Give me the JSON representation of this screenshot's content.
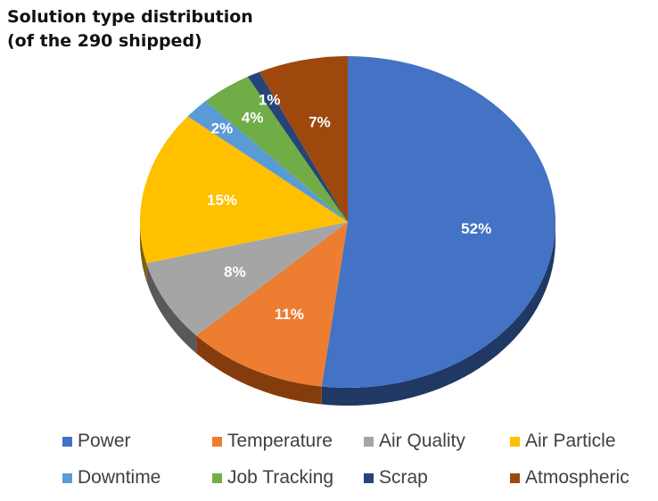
{
  "title_line1": "Solution type distribution",
  "title_line2": "(of the 290 shipped)",
  "chart_data": {
    "type": "pie",
    "title": "Solution type distribution (of the 290 shipped)",
    "slices": [
      {
        "name": "Power",
        "value": 52,
        "label": "52%",
        "color": "#4472C4",
        "side": "#1F3864"
      },
      {
        "name": "Temperature",
        "value": 11,
        "label": "11%",
        "color": "#ED7D31",
        "side": "#843C0C"
      },
      {
        "name": "Air Quality",
        "value": 8,
        "label": "8%",
        "color": "#A5A5A5",
        "side": "#595959"
      },
      {
        "name": "Air Particle",
        "value": 15,
        "label": "15%",
        "color": "#FFC000",
        "side": "#7F6000"
      },
      {
        "name": "Downtime",
        "value": 2,
        "label": "2%",
        "color": "#5B9BD5",
        "side": "#1F4E79"
      },
      {
        "name": "Job Tracking",
        "value": 4,
        "label": "4%",
        "color": "#70AD47",
        "side": "#375623"
      },
      {
        "name": "Scrap",
        "value": 1,
        "label": "1%",
        "color": "#264478",
        "side": "#0F1E3A"
      },
      {
        "name": "Atmospheric",
        "value": 7,
        "label": "7%",
        "color": "#9E480E",
        "side": "#4E2307"
      }
    ],
    "legend_position": "bottom"
  }
}
